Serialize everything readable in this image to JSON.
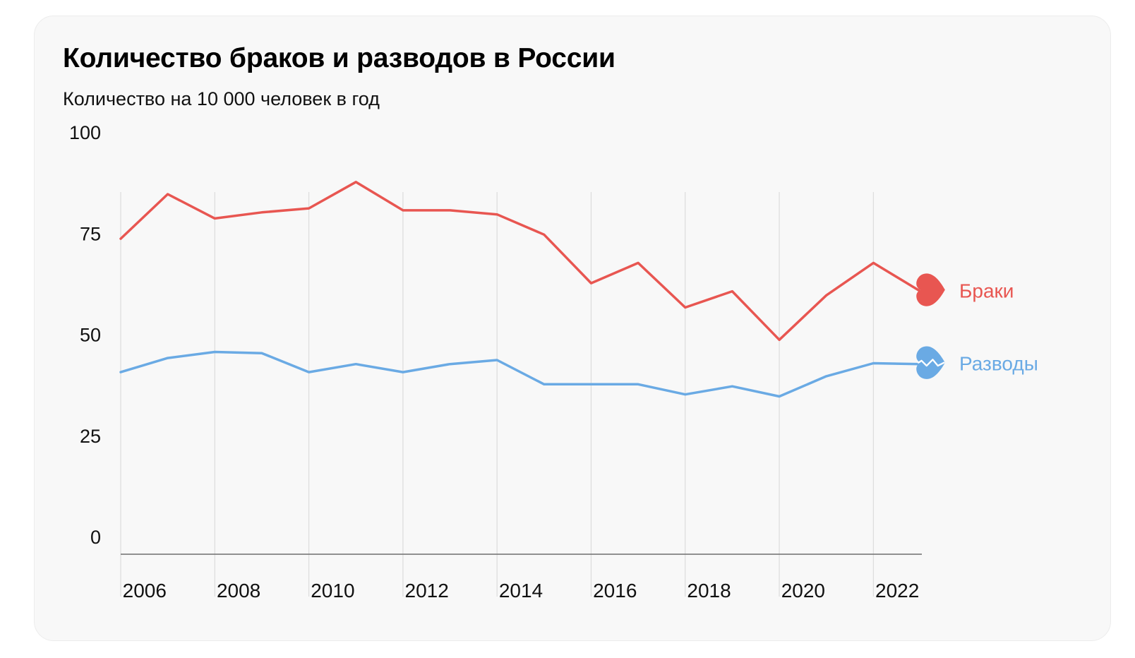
{
  "chart_data": {
    "type": "line",
    "title": "Количество браков и разводов в России",
    "subtitle": "Количество на 10 000 человек в год",
    "xlabel": "",
    "ylabel": "",
    "xlim": [
      2005,
      2022
    ],
    "ylim": [
      0,
      100
    ],
    "y_ticks": [
      0,
      25,
      50,
      75,
      100
    ],
    "x_ticks": [
      2006,
      2008,
      2010,
      2012,
      2014,
      2016,
      2018,
      2020,
      2022
    ],
    "x_tick_labels": [
      "2006",
      "2008",
      "2010",
      "2012",
      "2014",
      "2016",
      "2018",
      "2020",
      "2022"
    ],
    "grid": "vertical",
    "x": [
      2005,
      2006,
      2007,
      2008,
      2009,
      2010,
      2011,
      2012,
      2013,
      2014,
      2015,
      2016,
      2017,
      2018,
      2019,
      2020,
      2021,
      2022
    ],
    "series": [
      {
        "name": "Браки",
        "color": "#e85651",
        "icon": "heart-icon",
        "values": [
          78,
          89,
          83,
          84.5,
          85.5,
          92,
          85,
          85,
          84,
          79,
          67,
          72,
          61,
          65,
          53,
          64,
          72,
          65
        ]
      },
      {
        "name": "Разводы",
        "color": "#6aaae4",
        "icon": "broken-heart-icon",
        "values": [
          45,
          48.5,
          50,
          49.7,
          45,
          47,
          45,
          47,
          48,
          42,
          42,
          42,
          39.5,
          41.5,
          39,
          44,
          47.2,
          47
        ]
      }
    ]
  }
}
